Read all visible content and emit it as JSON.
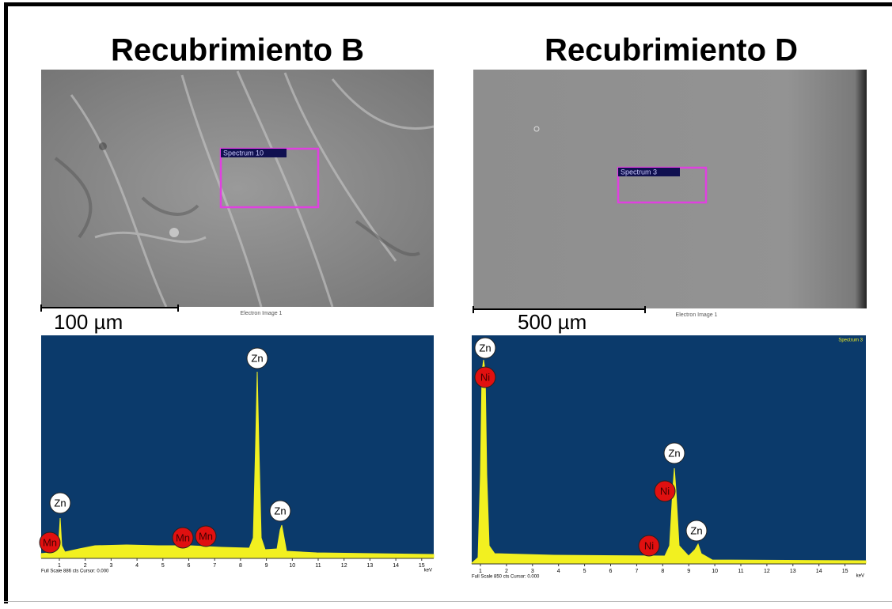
{
  "panels": [
    {
      "title": "Recubrimiento B",
      "scale_bar": "100 µm",
      "image_caption": "Electron Image 1",
      "spectrum_box": "Spectrum 10",
      "spectrum": {
        "axis_ticks": [
          "1",
          "2",
          "3",
          "4",
          "5",
          "6",
          "7",
          "8",
          "9",
          "10",
          "11",
          "12",
          "13",
          "14",
          "15"
        ],
        "unit": "keV",
        "footer": "Full Scale 886 cts Cursor: 0.000",
        "peak_labels": [
          "Zn",
          "Mn",
          "Mn",
          "Mn",
          "Zn",
          "Zn"
        ]
      }
    },
    {
      "title": "Recubrimiento D",
      "scale_bar": "500 µm",
      "image_caption": "Electron Image 1",
      "spectrum_box": "Spectrum 3",
      "spectrum": {
        "corner_label": "Spectrum 3",
        "axis_ticks": [
          "1",
          "2",
          "3",
          "4",
          "5",
          "6",
          "7",
          "8",
          "9",
          "10",
          "11",
          "12",
          "13",
          "14",
          "15"
        ],
        "unit": "keV",
        "footer": "Full Scale 850 cts Cursor: 0.000",
        "peak_labels": [
          "Zn",
          "Ni",
          "Zn",
          "Ni",
          "Ni",
          "Zn"
        ]
      }
    }
  ]
}
